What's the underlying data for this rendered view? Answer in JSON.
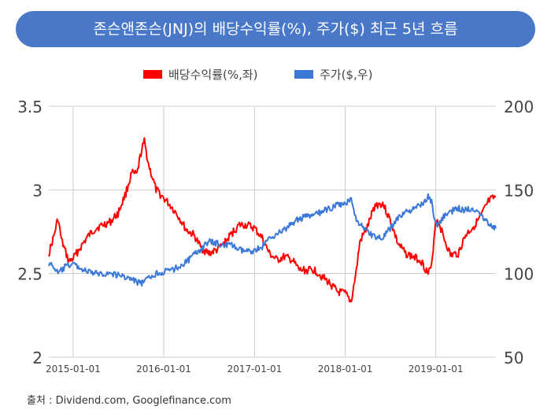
{
  "chart_data": {
    "type": "line",
    "title": "존슨앤존슨(JNJ)의 배당수익률(%), 주가($) 최근 5년 흐름",
    "source": "출처 : Dividend.com, Googlefinance.com",
    "x_ticks": [
      "2015-01-01",
      "2016-01-01",
      "2017-01-01",
      "2018-01-01",
      "2019-01-01"
    ],
    "x_range": [
      "2014-09-25",
      "2019-08-31"
    ],
    "left_axis": {
      "ticks": [
        "3.5",
        "3",
        "2.5",
        "2"
      ],
      "range": [
        2,
        3.5
      ]
    },
    "right_axis": {
      "ticks": [
        "200",
        "150",
        "100",
        "50"
      ],
      "range": [
        50,
        200
      ]
    },
    "grid": true,
    "legend_position": "top-center",
    "series": [
      {
        "name": "배당수익률(%,좌)",
        "axis": "left",
        "color": "#ff0000",
        "points": [
          [
            "2014-09-25",
            2.62
          ],
          [
            "2014-10-15",
            2.72
          ],
          [
            "2014-11-01",
            2.83
          ],
          [
            "2014-11-15",
            2.7
          ],
          [
            "2014-12-15",
            2.57
          ],
          [
            "2015-01-01",
            2.59
          ],
          [
            "2015-02-01",
            2.66
          ],
          [
            "2015-03-01",
            2.72
          ],
          [
            "2015-04-01",
            2.77
          ],
          [
            "2015-05-01",
            2.79
          ],
          [
            "2015-06-01",
            2.81
          ],
          [
            "2015-07-01",
            2.86
          ],
          [
            "2015-08-01",
            2.98
          ],
          [
            "2015-08-25",
            3.1
          ],
          [
            "2015-09-15",
            3.09
          ],
          [
            "2015-10-01",
            3.22
          ],
          [
            "2015-10-15",
            3.29
          ],
          [
            "2015-11-01",
            3.15
          ],
          [
            "2015-12-01",
            3.0
          ],
          [
            "2016-01-01",
            2.95
          ],
          [
            "2016-02-01",
            2.9
          ],
          [
            "2016-03-01",
            2.84
          ],
          [
            "2016-04-01",
            2.76
          ],
          [
            "2016-05-01",
            2.73
          ],
          [
            "2016-06-01",
            2.65
          ],
          [
            "2016-07-01",
            2.62
          ],
          [
            "2016-08-01",
            2.64
          ],
          [
            "2016-09-01",
            2.68
          ],
          [
            "2016-10-01",
            2.74
          ],
          [
            "2016-11-01",
            2.79
          ],
          [
            "2016-12-01",
            2.79
          ],
          [
            "2017-01-01",
            2.77
          ],
          [
            "2017-02-01",
            2.71
          ],
          [
            "2017-03-01",
            2.62
          ],
          [
            "2017-04-01",
            2.58
          ],
          [
            "2017-05-01",
            2.6
          ],
          [
            "2017-06-01",
            2.58
          ],
          [
            "2017-07-01",
            2.52
          ],
          [
            "2017-08-01",
            2.52
          ],
          [
            "2017-09-01",
            2.52
          ],
          [
            "2017-10-01",
            2.48
          ],
          [
            "2017-11-01",
            2.44
          ],
          [
            "2017-12-01",
            2.39
          ],
          [
            "2018-01-01",
            2.38
          ],
          [
            "2018-01-25",
            2.33
          ],
          [
            "2018-02-15",
            2.52
          ],
          [
            "2018-03-01",
            2.69
          ],
          [
            "2018-04-01",
            2.78
          ],
          [
            "2018-05-01",
            2.91
          ],
          [
            "2018-06-01",
            2.92
          ],
          [
            "2018-07-01",
            2.82
          ],
          [
            "2018-08-01",
            2.68
          ],
          [
            "2018-09-01",
            2.62
          ],
          [
            "2018-10-01",
            2.6
          ],
          [
            "2018-11-01",
            2.58
          ],
          [
            "2018-12-01",
            2.5
          ],
          [
            "2018-12-15",
            2.54
          ],
          [
            "2018-12-31",
            2.82
          ],
          [
            "2019-01-15",
            2.8
          ],
          [
            "2019-02-01",
            2.72
          ],
          [
            "2019-03-01",
            2.61
          ],
          [
            "2019-04-01",
            2.62
          ],
          [
            "2019-05-01",
            2.73
          ],
          [
            "2019-06-01",
            2.78
          ],
          [
            "2019-07-01",
            2.84
          ],
          [
            "2019-08-01",
            2.93
          ],
          [
            "2019-08-31",
            2.96
          ]
        ]
      },
      {
        "name": "주가($,우)",
        "axis": "right",
        "color": "#3c78d8",
        "points": [
          [
            "2014-09-25",
            106
          ],
          [
            "2014-10-15",
            104
          ],
          [
            "2014-11-01",
            100
          ],
          [
            "2014-12-01",
            104
          ],
          [
            "2015-01-01",
            106
          ],
          [
            "2015-02-01",
            103
          ],
          [
            "2015-03-01",
            101
          ],
          [
            "2015-04-01",
            100
          ],
          [
            "2015-05-01",
            100
          ],
          [
            "2015-06-01",
            100
          ],
          [
            "2015-07-01",
            99
          ],
          [
            "2015-08-01",
            98
          ],
          [
            "2015-09-01",
            96
          ],
          [
            "2015-10-01",
            94
          ],
          [
            "2015-11-01",
            97
          ],
          [
            "2015-12-01",
            100
          ],
          [
            "2016-01-01",
            101
          ],
          [
            "2016-02-01",
            102
          ],
          [
            "2016-03-01",
            104
          ],
          [
            "2016-04-01",
            107
          ],
          [
            "2016-05-01",
            111
          ],
          [
            "2016-06-01",
            115
          ],
          [
            "2016-07-01",
            119
          ],
          [
            "2016-08-01",
            118
          ],
          [
            "2016-09-01",
            117
          ],
          [
            "2016-10-01",
            117
          ],
          [
            "2016-11-01",
            114
          ],
          [
            "2016-12-01",
            113
          ],
          [
            "2017-01-01",
            114
          ],
          [
            "2017-02-01",
            116
          ],
          [
            "2017-03-01",
            121
          ],
          [
            "2017-04-01",
            124
          ],
          [
            "2017-05-01",
            126
          ],
          [
            "2017-06-01",
            130
          ],
          [
            "2017-07-01",
            133
          ],
          [
            "2017-08-01",
            134
          ],
          [
            "2017-09-01",
            135
          ],
          [
            "2017-10-01",
            137
          ],
          [
            "2017-11-01",
            139
          ],
          [
            "2017-12-01",
            141
          ],
          [
            "2018-01-01",
            141
          ],
          [
            "2018-01-25",
            146
          ],
          [
            "2018-02-15",
            131
          ],
          [
            "2018-03-01",
            130
          ],
          [
            "2018-04-01",
            125
          ],
          [
            "2018-05-01",
            122
          ],
          [
            "2018-06-01",
            121
          ],
          [
            "2018-07-01",
            127
          ],
          [
            "2018-08-01",
            133
          ],
          [
            "2018-09-01",
            137
          ],
          [
            "2018-10-01",
            138
          ],
          [
            "2018-11-01",
            141
          ],
          [
            "2018-12-01",
            146
          ],
          [
            "2018-12-15",
            143
          ],
          [
            "2018-12-31",
            129
          ],
          [
            "2019-01-15",
            130
          ],
          [
            "2019-02-01",
            134
          ],
          [
            "2019-03-01",
            137
          ],
          [
            "2019-04-01",
            139
          ],
          [
            "2019-05-01",
            138
          ],
          [
            "2019-06-01",
            139
          ],
          [
            "2019-07-01",
            136
          ],
          [
            "2019-08-01",
            130
          ],
          [
            "2019-08-31",
            127
          ]
        ]
      }
    ]
  }
}
